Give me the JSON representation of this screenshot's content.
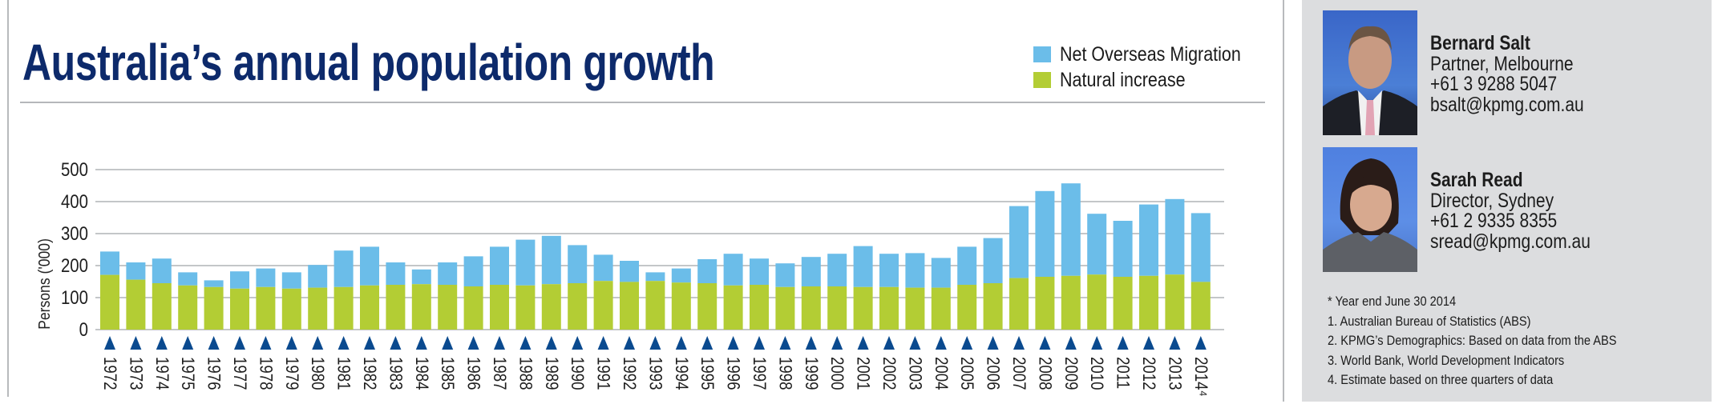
{
  "page": {
    "title": "Australia’s annual population growth"
  },
  "legend": [
    {
      "label": "Net Overseas Migration",
      "color": "#6bbde9"
    },
    {
      "label": "Natural increase",
      "color": "#b3cd34"
    }
  ],
  "chart_data": {
    "type": "bar",
    "stacked": true,
    "title": "Australia’s annual population growth",
    "xlabel": "",
    "ylabel": "Persons ('000)",
    "ylim": [
      0,
      500
    ],
    "yticks": [
      0,
      100,
      200,
      300,
      400,
      500
    ],
    "grid": true,
    "legend_position": "top-right",
    "categories": [
      "1972",
      "1973",
      "1974",
      "1975",
      "1976",
      "1977",
      "1978",
      "1979",
      "1980",
      "1981",
      "1982",
      "1983",
      "1984",
      "1985",
      "1986",
      "1987",
      "1988",
      "1989",
      "1990",
      "1991",
      "1992",
      "1993",
      "1994",
      "1995",
      "1996",
      "1997",
      "1998",
      "1999",
      "2000",
      "2001",
      "2002",
      "2003",
      "2004",
      "2005",
      "2006",
      "2007",
      "2008",
      "2009",
      "2010",
      "2011",
      "2012",
      "2013",
      "2014⁴"
    ],
    "series": [
      {
        "name": "Natural increase",
        "color": "#b3cd34",
        "values": [
          171,
          156,
          145,
          138,
          133,
          128,
          133,
          128,
          131,
          133,
          138,
          140,
          142,
          140,
          135,
          140,
          138,
          142,
          145,
          152,
          149,
          152,
          147,
          145,
          138,
          140,
          133,
          135,
          135,
          133,
          133,
          131,
          131,
          140,
          145,
          161,
          165,
          168,
          172,
          165,
          168,
          172,
          149
        ]
      },
      {
        "name": "Net Overseas Migration",
        "color": "#6bbde9",
        "values": [
          73,
          54,
          77,
          41,
          21,
          54,
          58,
          51,
          71,
          114,
          121,
          70,
          46,
          70,
          94,
          119,
          143,
          151,
          119,
          82,
          66,
          27,
          44,
          75,
          99,
          82,
          74,
          92,
          102,
          128,
          104,
          108,
          93,
          119,
          141,
          225,
          268,
          289,
          190,
          175,
          223,
          236,
          215
        ]
      }
    ],
    "marker_color": "#0a4a8f"
  },
  "contacts": [
    {
      "name": "Bernard Salt",
      "role": "Partner, Melbourne",
      "phone": "+61 3 9288 5047",
      "email": "bsalt@kpmg.com.au"
    },
    {
      "name": "Sarah Read",
      "role": "Director, Sydney",
      "phone": "+61 2 9335 8355",
      "email": "sread@kpmg.com.au"
    }
  ],
  "notes": [
    "* Year end June 30 2014",
    "1. Australian Bureau of Statistics (ABS)",
    "2. KPMG’s Demographics: Based on data from the ABS",
    "3. World Bank, World Development Indicators",
    "4. Estimate based on three quarters of data"
  ]
}
